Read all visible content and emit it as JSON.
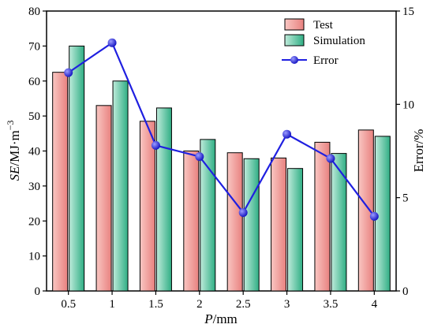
{
  "chart_data": {
    "type": "bar",
    "categories": [
      "0.5",
      "1",
      "1.5",
      "2",
      "2.5",
      "3",
      "3.5",
      "4"
    ],
    "series": [
      {
        "name": "Test",
        "axis": "left",
        "kind": "bar",
        "color": "#F08C8C",
        "values": [
          62.5,
          53.0,
          48.5,
          40.0,
          39.5,
          38.0,
          42.5,
          46.0
        ]
      },
      {
        "name": "Simulation",
        "axis": "left",
        "kind": "bar",
        "color": "#4CC29A",
        "values": [
          70.0,
          60.0,
          52.3,
          43.3,
          37.8,
          35.0,
          39.3,
          44.2
        ]
      },
      {
        "name": "Error",
        "axis": "right",
        "kind": "line",
        "color": "#1F1FE0",
        "values": [
          11.7,
          13.3,
          7.8,
          7.2,
          4.2,
          8.4,
          7.1,
          4.0
        ]
      }
    ],
    "xlabel_italic": "P",
    "xlabel_rest": "/mm",
    "ylabel_italic": "SE",
    "ylabel_rest": "/MJ·m",
    "ylabel_sup": "−3",
    "y2label": "Error/%",
    "ylim": [
      0,
      80
    ],
    "yticks": [
      "0",
      "10",
      "20",
      "30",
      "40",
      "50",
      "60",
      "70",
      "80"
    ],
    "y2lim": [
      0,
      15
    ],
    "y2ticks": [
      "0",
      "5",
      "10",
      "15"
    ],
    "legend_position": "top-right"
  }
}
